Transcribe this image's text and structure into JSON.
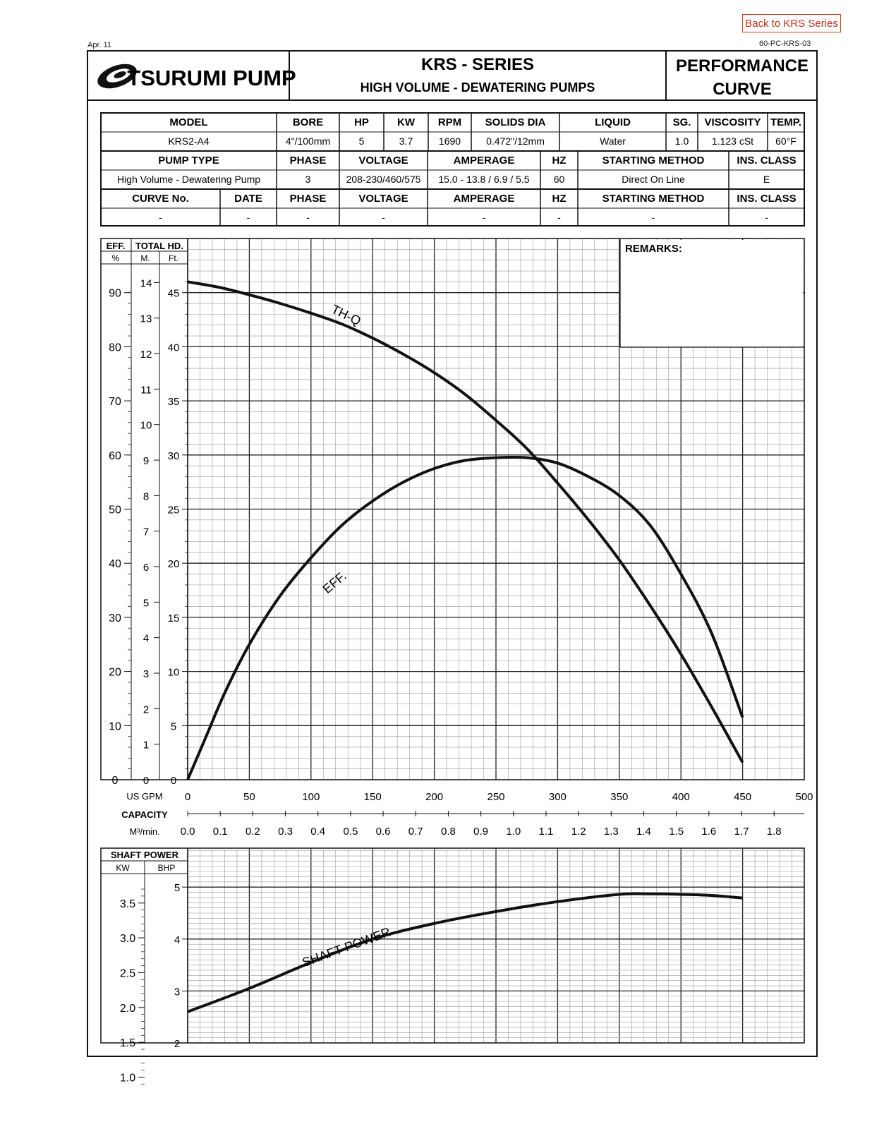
{
  "nav": {
    "back_label": "Back to KRS Series"
  },
  "doc": {
    "date": "Apr. 11",
    "doc_no": "60-PC-KRS-03"
  },
  "header": {
    "brand": "TSURUMI PUMP",
    "series": "KRS - SERIES",
    "subtitle": "HIGH VOLUME - DEWATERING PUMPS",
    "doc_type_1": "PERFORMANCE",
    "doc_type_2": "CURVE"
  },
  "specs": {
    "row1_headers": [
      "MODEL",
      "BORE",
      "HP",
      "KW",
      "RPM",
      "SOLIDS DIA",
      "LIQUID",
      "SG.",
      "VISCOSITY",
      "TEMP."
    ],
    "row1_values": [
      "KRS2-A4",
      "4\"/100mm",
      "5",
      "3.7",
      "1690",
      "0.472\"/12mm",
      "Water",
      "1.0",
      "1.123 cSt",
      "60°F"
    ],
    "row2_headers": [
      "PUMP TYPE",
      "PHASE",
      "VOLTAGE",
      "AMPERAGE",
      "HZ",
      "STARTING METHOD",
      "INS. CLASS"
    ],
    "row2_values": [
      "High Volume - Dewatering Pump",
      "3",
      "208-230/460/575",
      "15.0 - 13.8 / 6.9 / 5.5",
      "60",
      "Direct On Line",
      "E"
    ],
    "row3_headers": [
      "CURVE No.",
      "DATE",
      "PHASE",
      "VOLTAGE",
      "AMPERAGE",
      "HZ",
      "STARTING METHOD",
      "INS. CLASS"
    ],
    "row3_values": [
      "-",
      "-",
      "-",
      "-",
      "-",
      "-",
      "-",
      "-"
    ]
  },
  "chart_data": [
    {
      "type": "line",
      "title": "Performance Curve",
      "remarks_label": "REMARKS:",
      "eff_header": "EFF.",
      "eff_unit": "%",
      "head_header": "TOTAL HD.",
      "head_unit_m": "M.",
      "head_unit_ft": "Ft.",
      "capacity_label": "CAPACITY",
      "gpm_unit": "US GPM",
      "m3_unit": "M³/min.",
      "xlim": [
        0,
        500
      ],
      "x_ticks_gpm": [
        "0",
        "50",
        "100",
        "150",
        "200",
        "250",
        "300",
        "350",
        "400",
        "450",
        "500"
      ],
      "x_ticks_m3": [
        "0.0",
        "0.1",
        "0.2",
        "0.3",
        "0.4",
        "0.5",
        "0.6",
        "0.7",
        "0.8",
        "0.9",
        "1.0",
        "1.1",
        "1.2",
        "1.3",
        "1.4",
        "1.5",
        "1.6",
        "1.7",
        "1.8"
      ],
      "eff_ticks": [
        "0",
        "10",
        "20",
        "30",
        "40",
        "50",
        "60",
        "70",
        "80",
        "90"
      ],
      "head_m_ticks": [
        "0",
        "1",
        "2",
        "3",
        "4",
        "5",
        "6",
        "7",
        "8",
        "9",
        "10",
        "11",
        "12",
        "13",
        "14"
      ],
      "head_ft_ticks": [
        "0",
        "5",
        "10",
        "15",
        "20",
        "25",
        "30",
        "35",
        "40",
        "45"
      ],
      "ylim_ft": [
        0,
        50
      ],
      "series": [
        {
          "name": "TH-Q",
          "unit": "ft",
          "x": [
            0,
            25,
            50,
            75,
            100,
            125,
            150,
            175,
            200,
            225,
            250,
            275,
            300,
            325,
            350,
            375,
            400,
            425,
            450
          ],
          "values": [
            46.0,
            45.5,
            44.8,
            44.0,
            43.1,
            42.1,
            40.8,
            39.3,
            37.6,
            35.6,
            33.2,
            30.6,
            27.4,
            24.0,
            20.3,
            16.1,
            11.6,
            6.7,
            1.6
          ]
        },
        {
          "name": "EFF.",
          "unit": "%",
          "x": [
            0,
            15,
            30,
            50,
            75,
            100,
            125,
            150,
            175,
            200,
            225,
            250,
            275,
            300,
            325,
            350,
            375,
            400,
            425,
            450
          ],
          "values": [
            0,
            8,
            16,
            25,
            34,
            41,
            47,
            51.5,
            55,
            57.5,
            59,
            59.5,
            59.5,
            58.5,
            56,
            52.5,
            47,
            38,
            27,
            11.5
          ]
        }
      ]
    },
    {
      "type": "line",
      "title": "Shaft Power",
      "shaft_header": "SHAFT POWER",
      "kw_unit": "KW",
      "bhp_unit": "BHP",
      "kw_ticks": [
        "1.0",
        "1.5",
        "2.0",
        "2.5",
        "3.0",
        "3.5"
      ],
      "bhp_ticks": [
        "2",
        "3",
        "4",
        "5"
      ],
      "xlim": [
        0,
        500
      ],
      "ylim_bhp": [
        2,
        5.75
      ],
      "series": [
        {
          "name": "SHAFT POWER",
          "unit": "bhp",
          "x": [
            0,
            50,
            100,
            150,
            200,
            250,
            300,
            350,
            375,
            400,
            425,
            450
          ],
          "values": [
            2.6,
            3.05,
            3.55,
            4.0,
            4.3,
            4.53,
            4.72,
            4.86,
            4.87,
            4.86,
            4.84,
            4.79
          ]
        }
      ]
    }
  ]
}
